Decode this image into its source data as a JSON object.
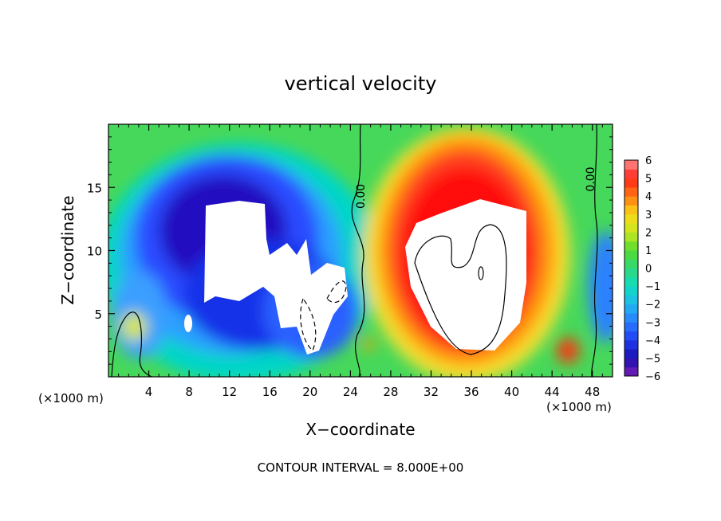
{
  "chart_data": {
    "type": "heatmap",
    "title": "vertical velocity",
    "xlabel": "X−coordinate",
    "ylabel": "Z−coordinate",
    "x_unit_left": "(×1000 m)",
    "x_unit_right": "(×1000 m)",
    "xlim": [
      0,
      50
    ],
    "ylim": [
      0,
      20
    ],
    "x_ticks": [
      4,
      8,
      12,
      16,
      20,
      24,
      28,
      32,
      36,
      40,
      44,
      48
    ],
    "x_tick_labels": [
      "4",
      "8",
      "12",
      "16",
      "20",
      "24",
      "28",
      "32",
      "36",
      "40",
      "44",
      "48"
    ],
    "y_ticks": [
      5,
      10,
      15
    ],
    "y_tick_labels": [
      "5",
      "10",
      "15"
    ],
    "colorbar": {
      "min": -6,
      "max": 6,
      "tick_values": [
        6,
        5,
        4,
        3,
        2,
        1,
        0,
        -1,
        -2,
        -3,
        -4,
        -5,
        -6
      ],
      "tick_labels": [
        "6",
        "5",
        "4",
        "3",
        "2",
        "1",
        "0",
        "−1",
        "−2",
        "−3",
        "−4",
        "−5",
        "−6"
      ]
    },
    "contour_labels": [
      "0.00",
      "0.00"
    ],
    "features": [
      {
        "kind": "downdraft",
        "x_center": 14,
        "z_center": 10,
        "min_value": -8
      },
      {
        "kind": "updraft",
        "x_center": 36,
        "z_center": 8,
        "max_value": 8
      }
    ],
    "footnote": "CONTOUR INTERVAL = 8.000E+00"
  }
}
